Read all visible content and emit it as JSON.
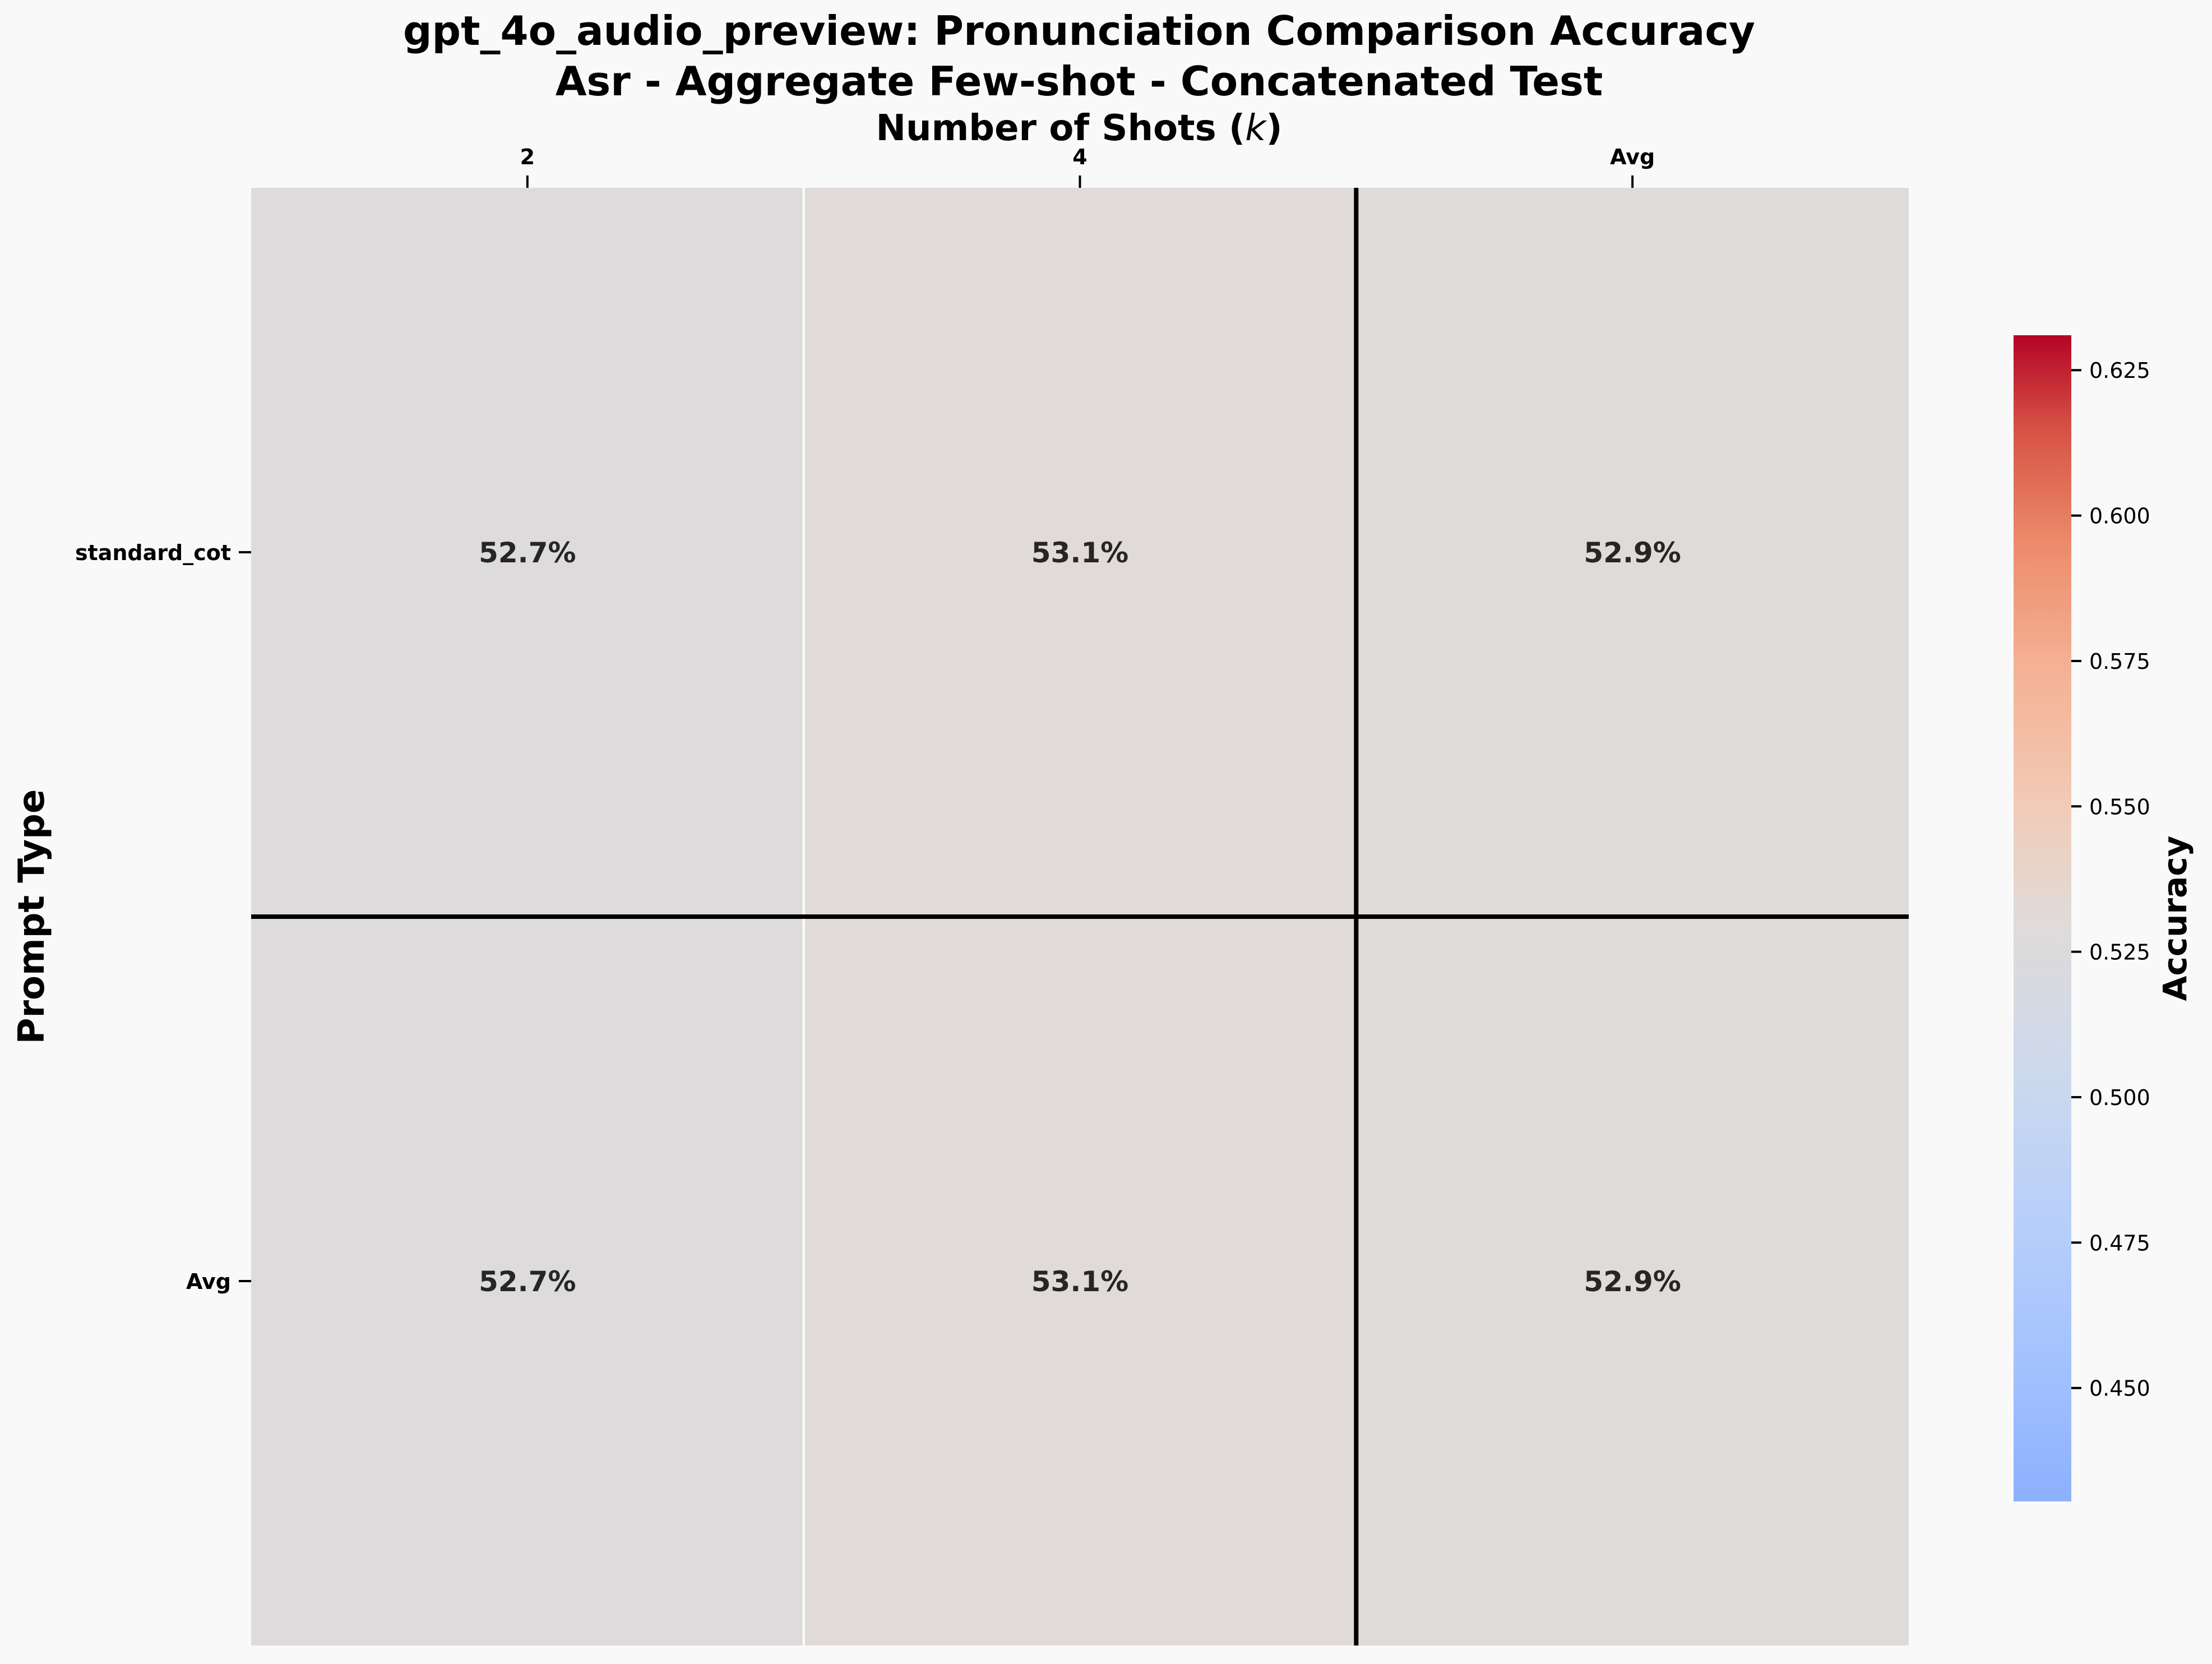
{
  "chart_data": {
    "type": "heatmap",
    "title": "gpt_4o_audio_preview: Pronunciation Comparison Accuracy",
    "subtitle": "Asr - Aggregate Few-shot - Concatenated Test",
    "xlabel": "Number of Shots",
    "xlabel_symbol": "k",
    "ylabel": "Prompt Type",
    "x_categories": [
      "2",
      "4",
      "Avg"
    ],
    "y_categories": [
      "standard_cot",
      "Avg"
    ],
    "values": [
      [
        0.527,
        0.531,
        0.529
      ],
      [
        0.527,
        0.531,
        0.529
      ]
    ],
    "cell_labels": [
      [
        "52.7%",
        "53.1%",
        "52.9%"
      ],
      [
        "52.7%",
        "53.1%",
        "52.9%"
      ]
    ],
    "colorbar": {
      "label": "Accuracy",
      "min": 0.4305,
      "max": 0.631,
      "ticks": [
        "0.450",
        "0.475",
        "0.500",
        "0.525",
        "0.550",
        "0.575",
        "0.600",
        "0.625"
      ],
      "colormap": "coolwarm"
    },
    "separators": "black lines before last row and last column",
    "legend": "none",
    "grid": false
  }
}
